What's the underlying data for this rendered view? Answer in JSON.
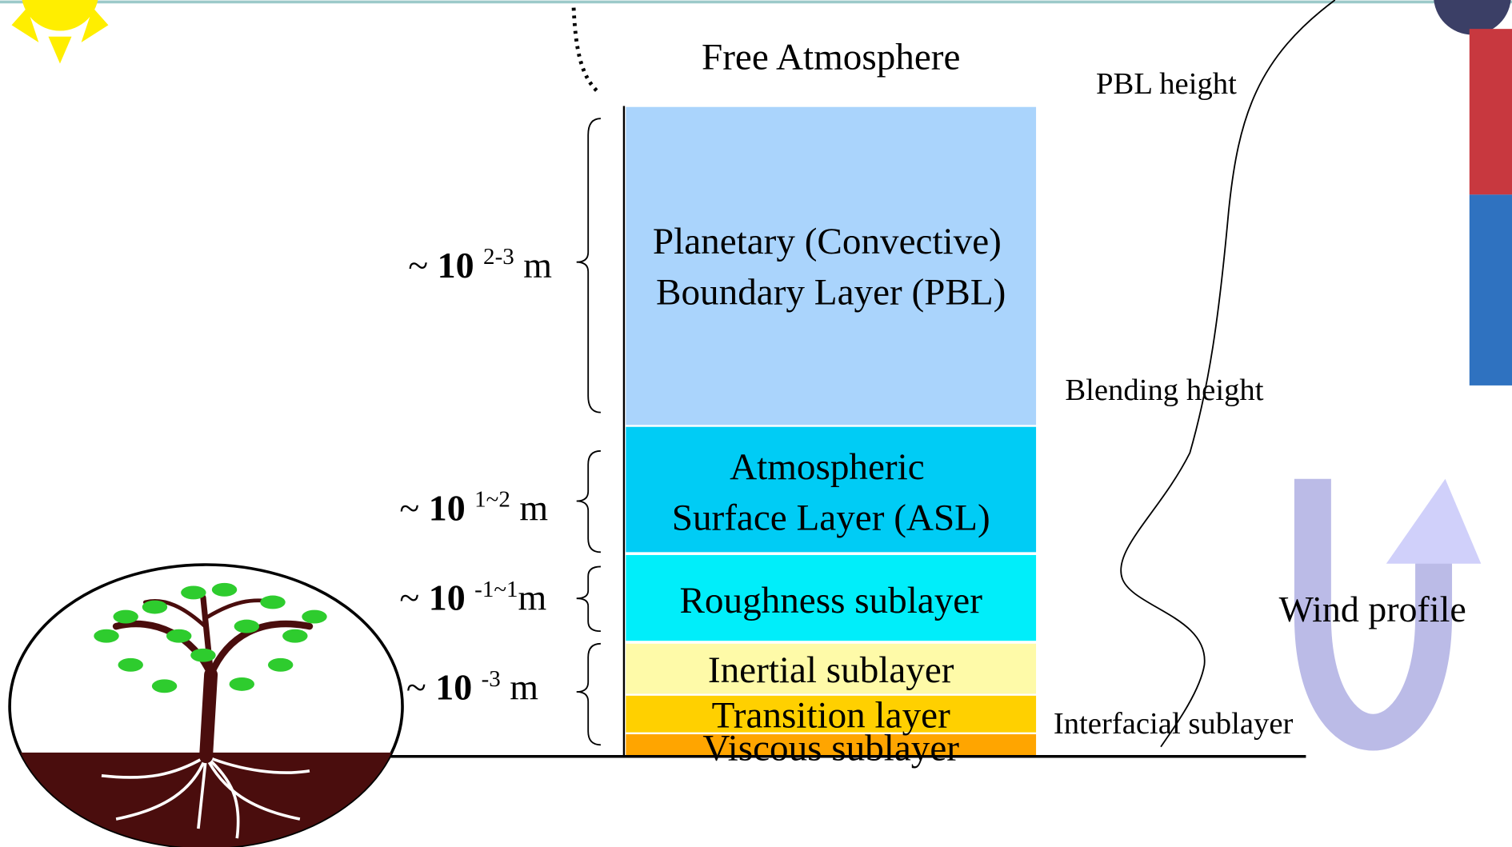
{
  "free_atmosphere": "Free Atmosphere",
  "layers": [
    {
      "lines": [
        "Planetary (Convective)",
        "Boundary Layer (PBL)"
      ]
    },
    {
      "lines": [
        "Atmospheric",
        "Surface Layer (ASL)"
      ]
    },
    {
      "lines": [
        "Roughness sublayer"
      ]
    },
    {
      "lines": [
        "Inertial sublayer"
      ]
    },
    {
      "lines": [
        "Transition layer"
      ]
    },
    {
      "lines": [
        "Viscous sublayer"
      ]
    }
  ],
  "scales": [
    {
      "prefix": "~",
      "base": "10",
      "exponent": "2-3",
      "unit": "m"
    },
    {
      "prefix": "~",
      "base": "10",
      "exponent": "1~2",
      "unit": "m"
    },
    {
      "prefix": "~",
      "base": "10",
      "exponent": "-1~1",
      "unit": "m"
    },
    {
      "prefix": "~",
      "base": "10",
      "exponent": "-3",
      "unit": "m"
    }
  ],
  "heights": [
    "PBL height",
    "Blending height",
    "Interfacial sublayer"
  ],
  "wind_profile": "Wind profile"
}
